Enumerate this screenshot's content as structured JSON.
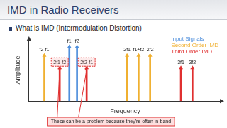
{
  "slide": {
    "title": "IMD in Radio Receivers",
    "bullet": "What is IMD (Intermodulation Distortion)",
    "annotation": "These can be a problem because they're often in-band"
  },
  "chart_data": {
    "type": "bar",
    "x_label": "Frequency",
    "y_label": "Amplitude",
    "xlim": [
      0,
      100
    ],
    "ylim": [
      0,
      100
    ],
    "tick_labels": false,
    "grid": false,
    "legend": "top-right",
    "series": [
      {
        "name": "Input Signals",
        "color": "#4f8fdc",
        "x": [
          21,
          25
        ],
        "labels": [
          "f1",
          "f2"
        ],
        "values": [
          89,
          89
        ]
      },
      {
        "name": "Second Order IMD",
        "color": "#f0b030",
        "x": [
          8,
          51,
          57,
          63
        ],
        "labels": [
          "f2-f1",
          "2f1",
          "f1+f2",
          "2f2"
        ],
        "values": [
          75,
          75,
          75,
          75
        ]
      },
      {
        "name": "Third Order IMD",
        "color": "#e03030",
        "x": [
          16,
          30,
          79,
          85
        ],
        "labels": [
          "2f1-f2",
          "2f2-f1",
          "3f1",
          "3f2"
        ],
        "values": [
          55,
          55,
          55,
          55
        ]
      }
    ]
  }
}
